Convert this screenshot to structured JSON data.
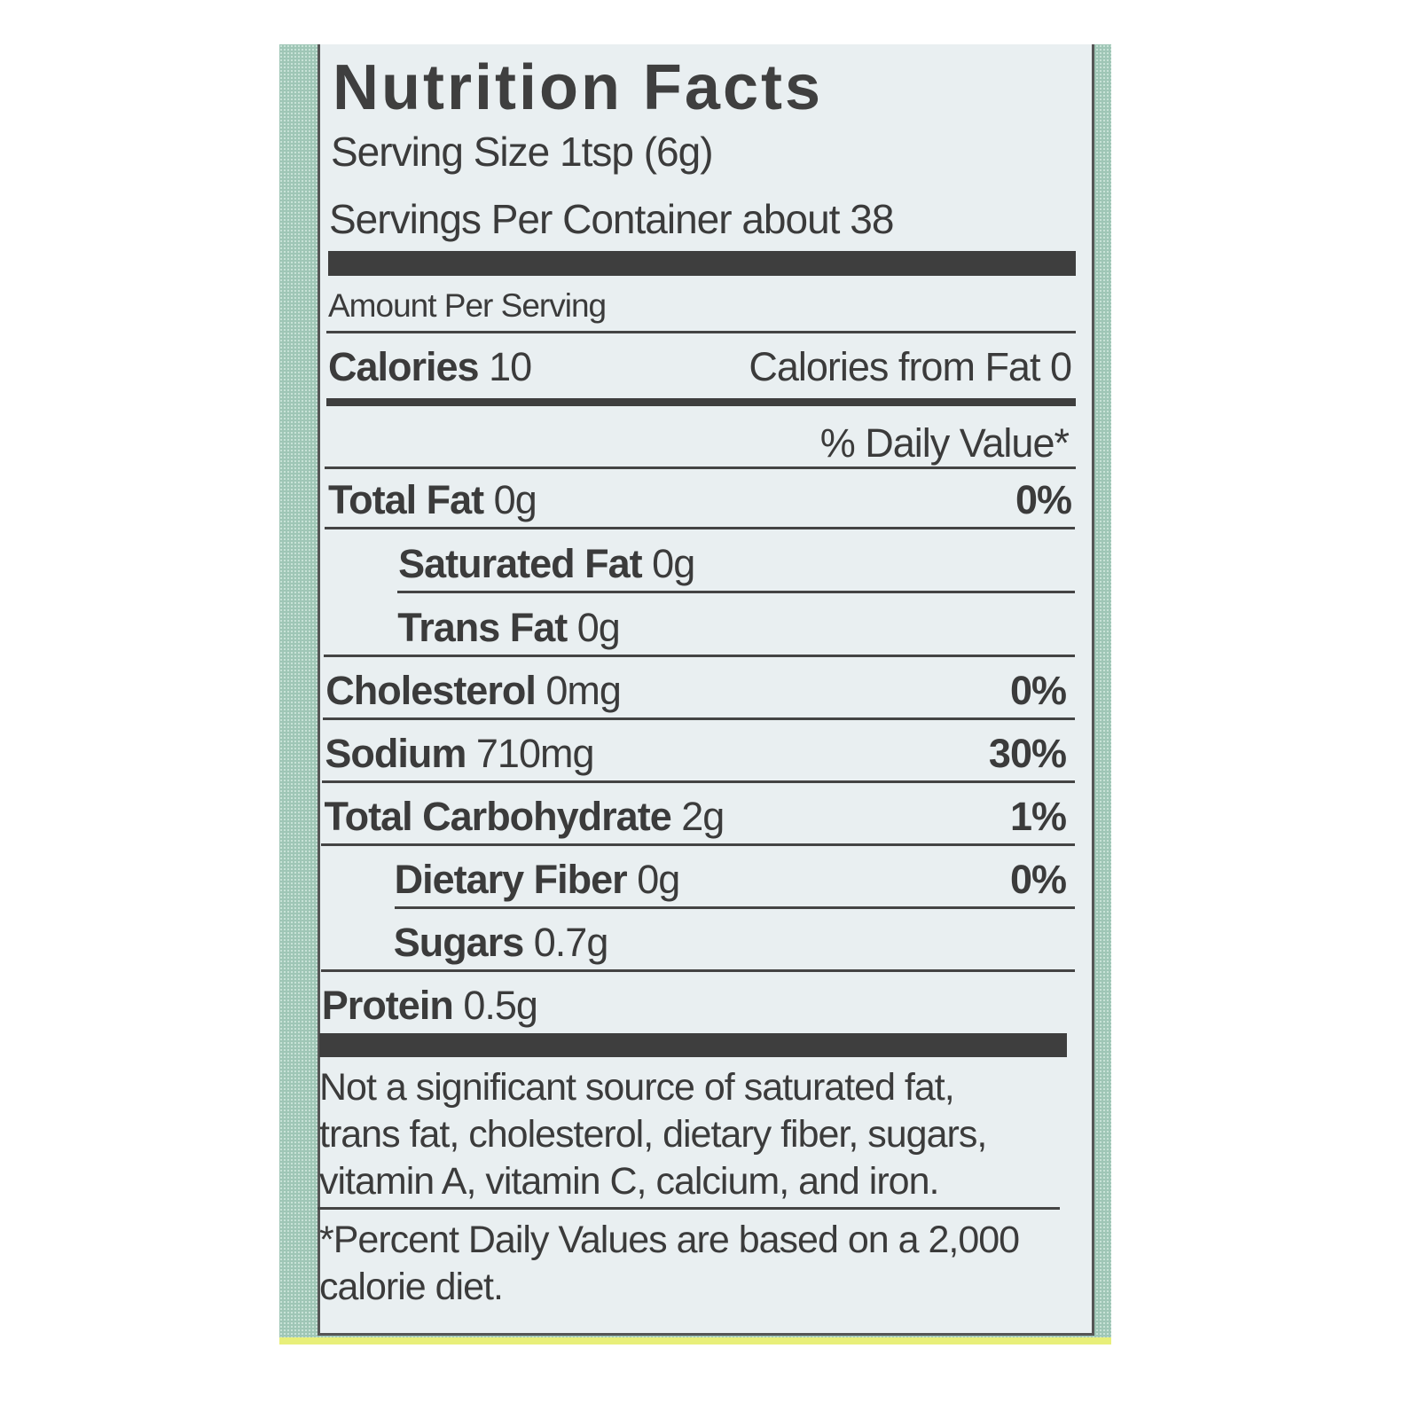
{
  "label": {
    "title": "Nutrition Facts",
    "serving_size": "Serving Size 1tsp (6g)",
    "servings_per_container": "Servings Per Container about 38",
    "amount_per_serving": "Amount Per Serving",
    "calories_label": "Calories",
    "calories_value": "10",
    "calories_from_fat": "Calories from Fat 0",
    "daily_value_header": "% Daily Value*",
    "nutrients": [
      {
        "name": "Total Fat",
        "amount": "0g",
        "dv": "0%"
      },
      {
        "name": "Saturated Fat",
        "amount": "0g",
        "dv": ""
      },
      {
        "name": "Trans Fat",
        "amount": "0g",
        "dv": ""
      },
      {
        "name": "Cholesterol",
        "amount": "0mg",
        "dv": "0%"
      },
      {
        "name": "Sodium",
        "amount": "710mg",
        "dv": "30%"
      },
      {
        "name": "Total Carbohydrate",
        "amount": "2g",
        "dv": "1%"
      },
      {
        "name": "Dietary Fiber",
        "amount": "0g",
        "dv": "0%"
      },
      {
        "name": "Sugars",
        "amount": "0.7g",
        "dv": ""
      },
      {
        "name": "Protein",
        "amount": "0.5g",
        "dv": ""
      }
    ],
    "footnote_lines": [
      "Not a significant source of saturated fat,",
      "trans fat, cholesterol, dietary fiber, sugars,",
      "vitamin A, vitamin C, calcium, and iron."
    ],
    "dv_note_lines": [
      "*Percent Daily Values are based on a 2,000",
      "calorie diet."
    ]
  },
  "colors": {
    "text": "#3b3b3b",
    "panel": "#e9eff1",
    "background_pattern": "#9fc6b6"
  }
}
